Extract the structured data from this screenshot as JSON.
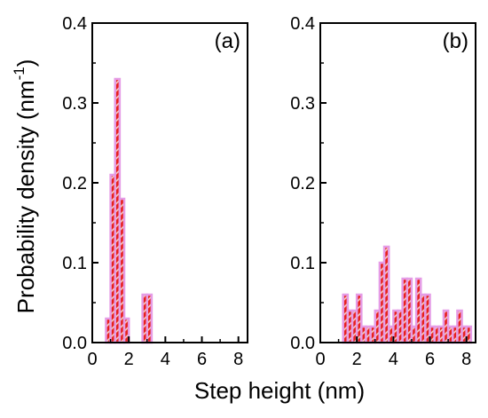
{
  "chart_data": [
    {
      "type": "bar",
      "panel_label": "(a)",
      "xlim": [
        0,
        8.5
      ],
      "ylim": [
        0,
        0.4
      ],
      "xticks": [
        0,
        2,
        4,
        6,
        8
      ],
      "yticks": [
        0.0,
        0.1,
        0.2,
        0.3,
        0.4
      ],
      "ytick_labels": [
        "0.0",
        "0.1",
        "0.2",
        "0.3",
        "0.4"
      ],
      "bin_width": 0.25,
      "bins": [
        {
          "x0": 0.75,
          "value": 0.03
        },
        {
          "x0": 1.0,
          "value": 0.21
        },
        {
          "x0": 1.25,
          "value": 0.33
        },
        {
          "x0": 1.5,
          "value": 0.18
        },
        {
          "x0": 1.75,
          "value": 0.03
        },
        {
          "x0": 2.75,
          "value": 0.06
        },
        {
          "x0": 3.0,
          "value": 0.06
        }
      ],
      "bar_fill": "#e8201c",
      "bar_hatch": "#f5d6c8",
      "bar_edge": "#e59ce6"
    },
    {
      "type": "bar",
      "panel_label": "(b)",
      "xlim": [
        0,
        8.5
      ],
      "ylim": [
        0,
        0.4
      ],
      "xticks": [
        0,
        2,
        4,
        6,
        8
      ],
      "yticks": [
        0.0,
        0.1,
        0.2,
        0.3,
        0.4
      ],
      "ytick_labels": [
        "0.0",
        "0.1",
        "0.2",
        "0.3",
        "0.4"
      ],
      "bin_width": 0.25,
      "bins": [
        {
          "x0": 1.25,
          "value": 0.06
        },
        {
          "x0": 1.5,
          "value": 0.04
        },
        {
          "x0": 1.75,
          "value": 0.04
        },
        {
          "x0": 2.0,
          "value": 0.06
        },
        {
          "x0": 2.25,
          "value": 0.02
        },
        {
          "x0": 2.5,
          "value": 0.02
        },
        {
          "x0": 2.75,
          "value": 0.02
        },
        {
          "x0": 3.0,
          "value": 0.04
        },
        {
          "x0": 3.25,
          "value": 0.1
        },
        {
          "x0": 3.5,
          "value": 0.12
        },
        {
          "x0": 3.75,
          "value": 0.02
        },
        {
          "x0": 4.0,
          "value": 0.04
        },
        {
          "x0": 4.25,
          "value": 0.04
        },
        {
          "x0": 4.5,
          "value": 0.08
        },
        {
          "x0": 4.75,
          "value": 0.08
        },
        {
          "x0": 5.0,
          "value": 0.02
        },
        {
          "x0": 5.25,
          "value": 0.08
        },
        {
          "x0": 5.5,
          "value": 0.06
        },
        {
          "x0": 5.75,
          "value": 0.06
        },
        {
          "x0": 6.0,
          "value": 0.02
        },
        {
          "x0": 6.25,
          "value": 0.02
        },
        {
          "x0": 6.5,
          "value": 0.02
        },
        {
          "x0": 6.75,
          "value": 0.04
        },
        {
          "x0": 7.0,
          "value": 0.02
        },
        {
          "x0": 7.25,
          "value": 0.02
        },
        {
          "x0": 7.5,
          "value": 0.04
        },
        {
          "x0": 7.75,
          "value": 0.02
        },
        {
          "x0": 8.0,
          "value": 0.02
        }
      ],
      "bar_fill": "#e8201c",
      "bar_hatch": "#f5d6c8",
      "bar_edge": "#e59ce6"
    }
  ],
  "xlabel": "Step height (nm)",
  "ylabel_main": "Probability density (nm",
  "ylabel_sup": "-1",
  "ylabel_close": ")"
}
